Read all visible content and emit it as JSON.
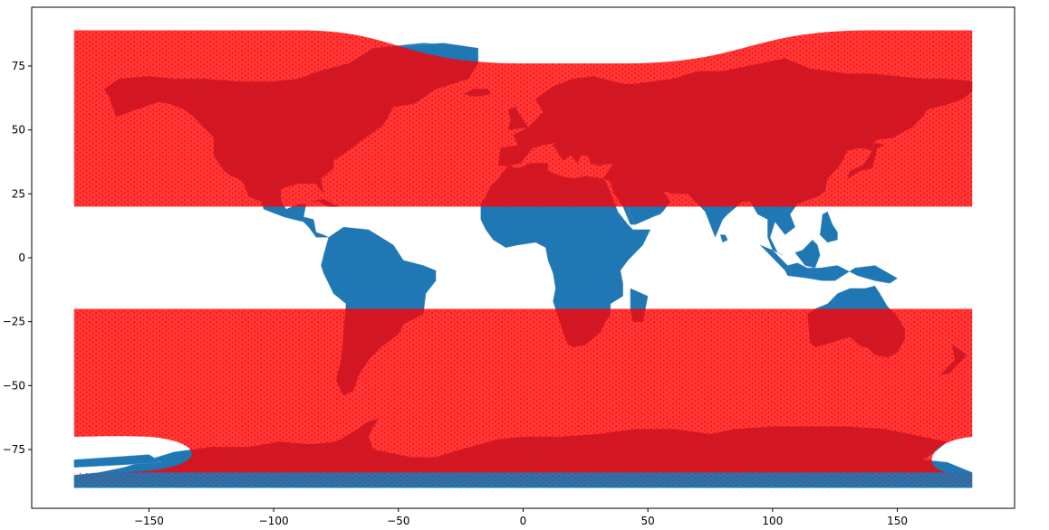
{
  "chart_data": {
    "type": "scatter",
    "title": "",
    "xlabel": "",
    "ylabel": "",
    "xlim": [
      -197,
      197
    ],
    "ylim": [
      -98,
      98
    ],
    "x_ticks": [
      -150,
      -100,
      -50,
      0,
      50,
      100,
      150
    ],
    "y_ticks": [
      75,
      50,
      25,
      0,
      -25,
      -50,
      -75
    ],
    "x_tick_labels": [
      "−150",
      "−100",
      "−50",
      "0",
      "50",
      "100",
      "150"
    ],
    "y_tick_labels": [
      "75",
      "50",
      "25",
      "0",
      "−25",
      "−50",
      "−75"
    ],
    "grid": false,
    "legend": "none",
    "colors": {
      "land": "#1f77b4",
      "points": "#ff0000",
      "axes": "#000000",
      "background": "#ffffff"
    },
    "series": [
      {
        "kind": "points",
        "color": "#ff0000",
        "bands": [
          {
            "lat_range": [
              20,
              89
            ],
            "lon_range": [
              -180,
              180
            ]
          },
          {
            "lat_range": [
              -89,
              -20
            ],
            "lon_range": [
              -180,
              180
            ]
          }
        ]
      }
    ]
  }
}
